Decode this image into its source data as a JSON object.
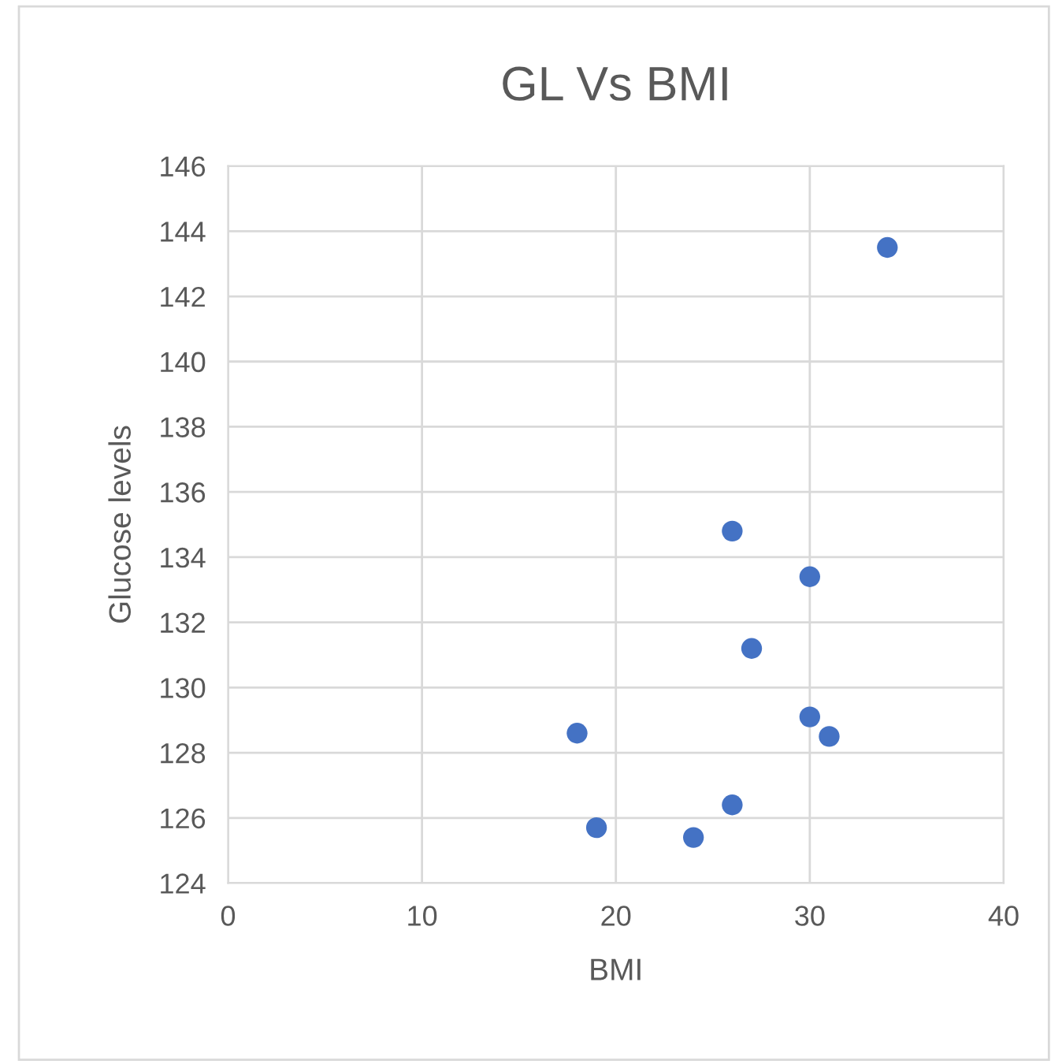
{
  "chart_data": {
    "type": "scatter",
    "title": "GL Vs BMI",
    "xlabel": "BMI",
    "ylabel": "Glucose levels",
    "x": [
      34,
      26,
      30,
      27,
      18,
      30,
      31,
      26,
      19,
      24
    ],
    "values": [
      143.5,
      134.8,
      133.4,
      131.2,
      128.6,
      129.1,
      128.5,
      126.4,
      125.7,
      125.4
    ],
    "color": "#4472c4",
    "marker": "circle",
    "xlim": [
      0,
      40
    ],
    "xticks": [
      0,
      10,
      20,
      30,
      40
    ],
    "ylim": [
      124,
      146
    ],
    "yticks": [
      124,
      126,
      128,
      130,
      132,
      134,
      136,
      138,
      140,
      142,
      144,
      146
    ],
    "grid": true,
    "legend": false
  }
}
